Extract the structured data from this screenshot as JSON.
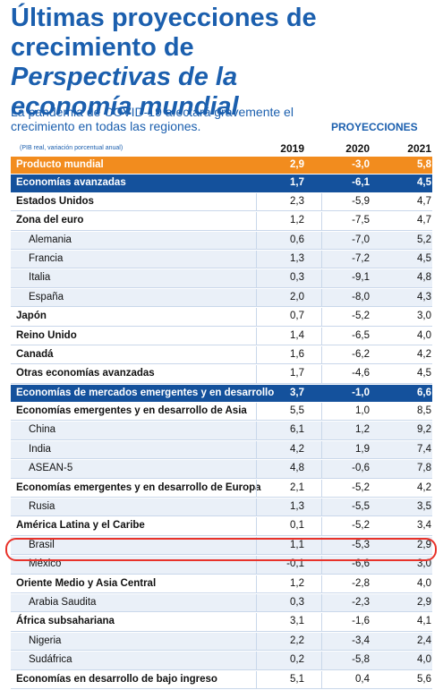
{
  "header": {
    "title": {
      "regular": "Últimas proyecciones de crecimiento de ",
      "italic": "Perspectivas de la economía mundial"
    },
    "subtitle": "La pandemia de COVID-19 afectará gravemente el crecimiento en todas las regiones."
  },
  "table": {
    "projections_label": "PROYECCIONES",
    "note": "(PIB real, variación porcentual anual)",
    "columns": [
      "2019",
      "2020",
      "2021"
    ],
    "rows": [
      {
        "name": "Producto mundial",
        "style": "orange",
        "values": [
          "2,9",
          "-3,0",
          "5,8"
        ]
      },
      {
        "name": "Economías avanzadas",
        "style": "blue",
        "values": [
          "1,7",
          "-6,1",
          "4,5"
        ]
      },
      {
        "name": "Estados Unidos",
        "style": "bold",
        "values": [
          "2,3",
          "-5,9",
          "4,7"
        ]
      },
      {
        "name": "Zona del euro",
        "style": "bold",
        "values": [
          "1,2",
          "-7,5",
          "4,7"
        ]
      },
      {
        "name": "Alemania",
        "style": "indent",
        "values": [
          "0,6",
          "-7,0",
          "5,2"
        ]
      },
      {
        "name": "Francia",
        "style": "indent",
        "values": [
          "1,3",
          "-7,2",
          "4,5"
        ]
      },
      {
        "name": "Italia",
        "style": "indent",
        "values": [
          "0,3",
          "-9,1",
          "4,8"
        ]
      },
      {
        "name": "España",
        "style": "indent",
        "values": [
          "2,0",
          "-8,0",
          "4,3"
        ]
      },
      {
        "name": "Japón",
        "style": "bold",
        "values": [
          "0,7",
          "-5,2",
          "3,0"
        ]
      },
      {
        "name": "Reino Unido",
        "style": "bold",
        "values": [
          "1,4",
          "-6,5",
          "4,0"
        ]
      },
      {
        "name": "Canadá",
        "style": "bold",
        "values": [
          "1,6",
          "-6,2",
          "4,2"
        ]
      },
      {
        "name": "Otras economías avanzadas",
        "style": "bold",
        "values": [
          "1,7",
          "-4,6",
          "4,5"
        ]
      },
      {
        "name": "Economías de mercados emergentes y en desarrollo",
        "style": "blue",
        "values": [
          "3,7",
          "-1,0",
          "6,6"
        ]
      },
      {
        "name": "Economías emergentes y en desarrollo de Asia",
        "style": "bold",
        "values": [
          "5,5",
          "1,0",
          "8,5"
        ]
      },
      {
        "name": "China",
        "style": "indent",
        "values": [
          "6,1",
          "1,2",
          "9,2"
        ]
      },
      {
        "name": "India",
        "style": "indent",
        "values": [
          "4,2",
          "1,9",
          "7,4"
        ]
      },
      {
        "name": "ASEAN-5",
        "style": "indent",
        "values": [
          "4,8",
          "-0,6",
          "7,8"
        ]
      },
      {
        "name": "Economías emergentes y en desarrollo de Europa",
        "style": "bold",
        "values": [
          "2,1",
          "-5,2",
          "4,2"
        ]
      },
      {
        "name": "Rusia",
        "style": "indent",
        "values": [
          "1,3",
          "-5,5",
          "3,5"
        ]
      },
      {
        "name": "América Latina y el Caribe",
        "style": "bold",
        "values": [
          "0,1",
          "-5,2",
          "3,4"
        ]
      },
      {
        "name": "Brasil",
        "style": "indent",
        "values": [
          "1,1",
          "-5,3",
          "2,9"
        ]
      },
      {
        "name": "México",
        "style": "indent",
        "values": [
          "-0,1",
          "-6,6",
          "3,0"
        ]
      },
      {
        "name": "Oriente Medio y Asia Central",
        "style": "bold",
        "values": [
          "1,2",
          "-2,8",
          "4,0"
        ]
      },
      {
        "name": "Arabia Saudita",
        "style": "indent",
        "values": [
          "0,3",
          "-2,3",
          "2,9"
        ]
      },
      {
        "name": "África subsahariana",
        "style": "bold",
        "values": [
          "3,1",
          "-1,6",
          "4,1"
        ]
      },
      {
        "name": "Nigeria",
        "style": "indent",
        "values": [
          "2,2",
          "-3,4",
          "2,4"
        ]
      },
      {
        "name": "Sudáfrica",
        "style": "indent",
        "values": [
          "0,2",
          "-5,8",
          "4,0"
        ]
      },
      {
        "name": "Economías en desarrollo de bajo ingreso",
        "style": "bold",
        "values": [
          "5,1",
          "0,4",
          "5,6"
        ]
      }
    ]
  }
}
